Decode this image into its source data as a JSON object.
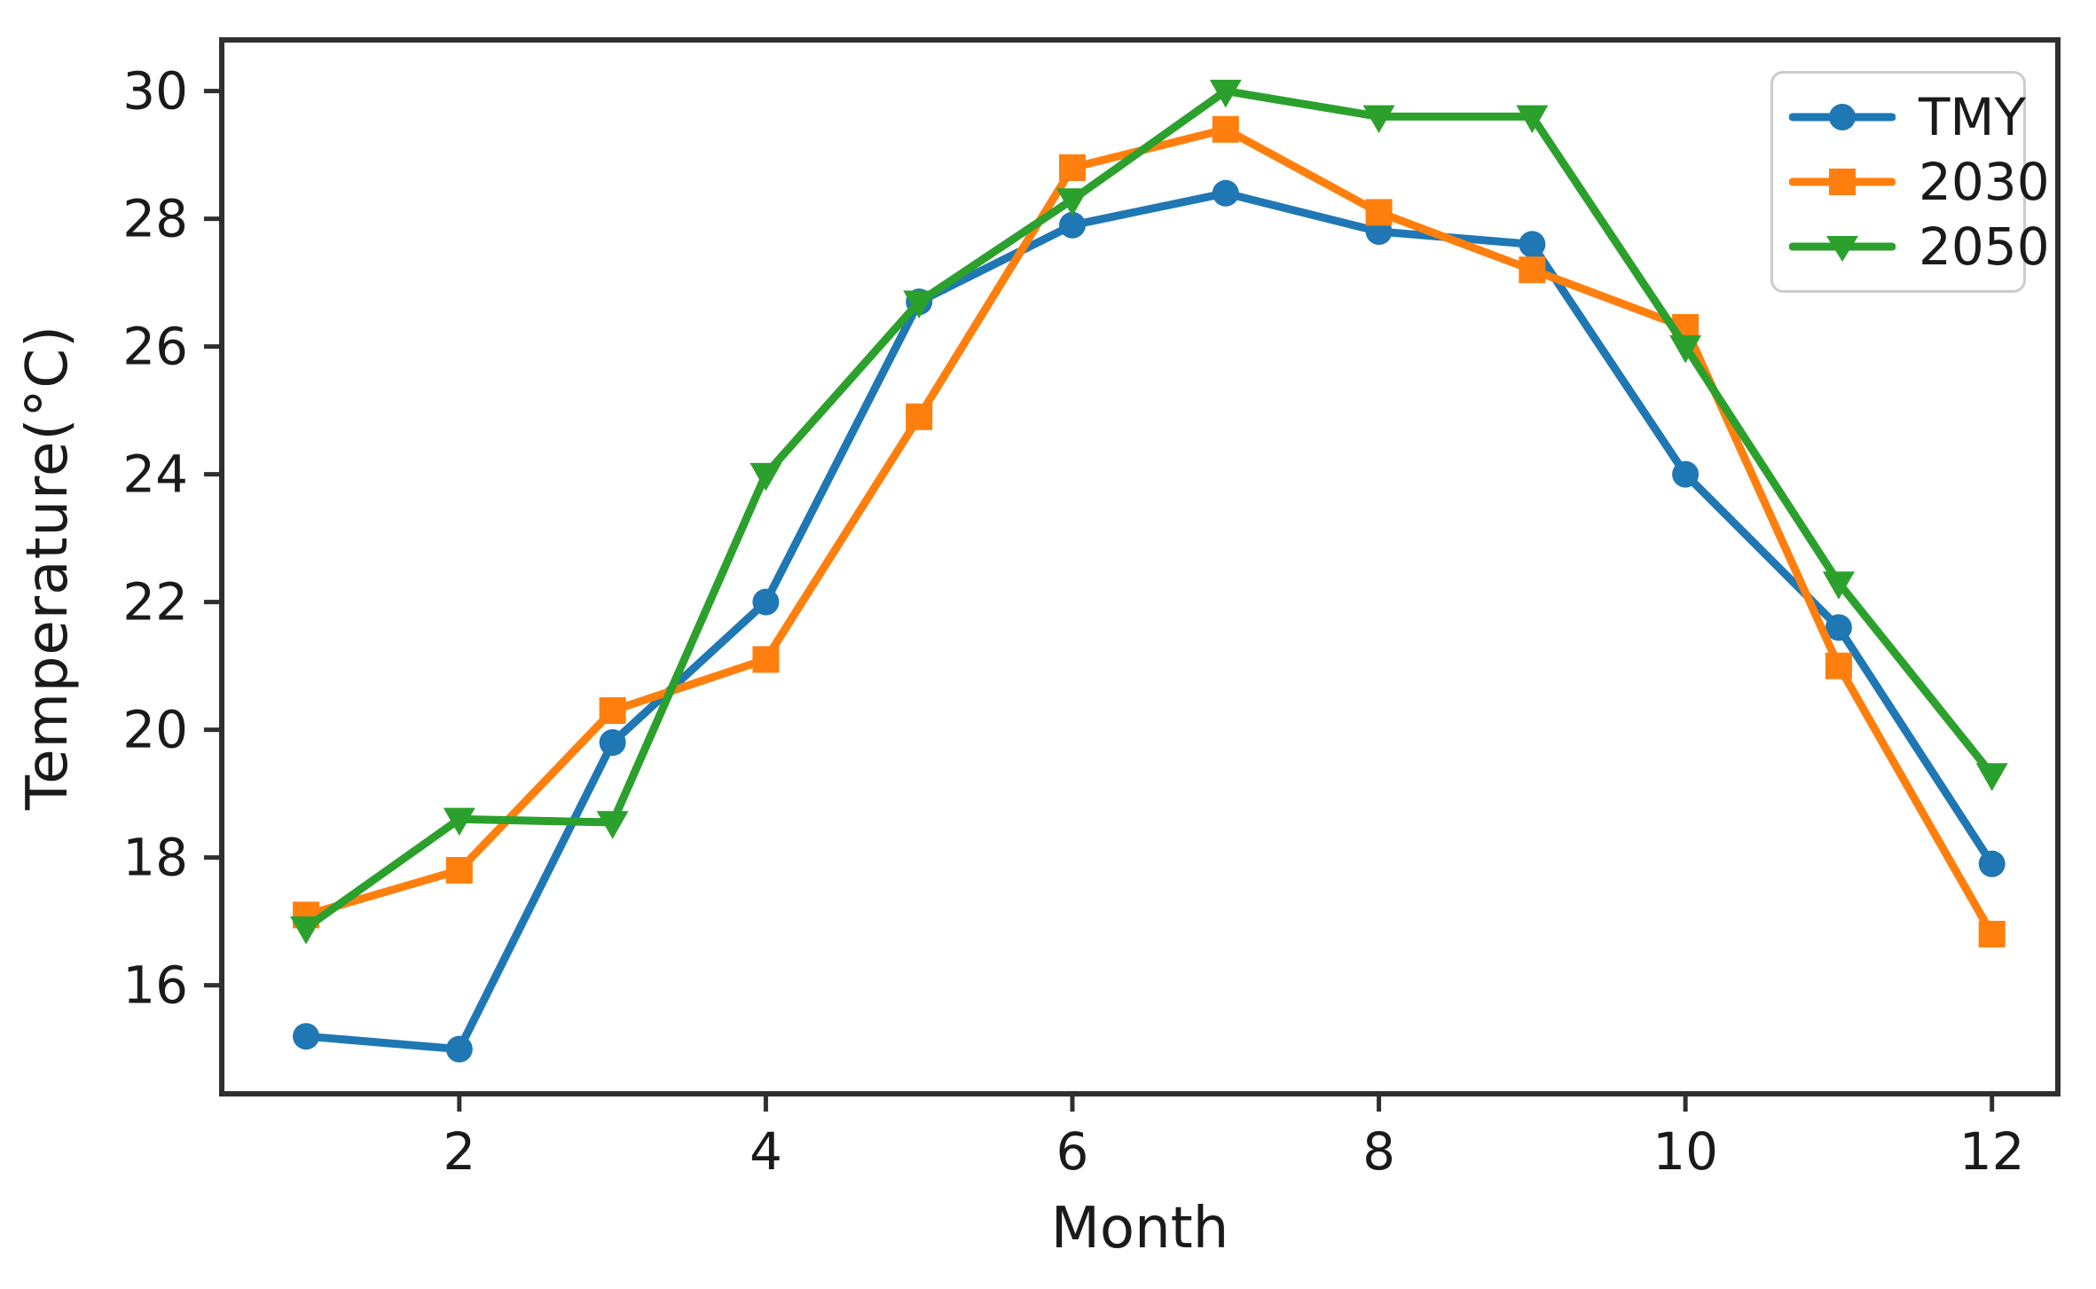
{
  "figure": {
    "background_color": "#ffffff",
    "axis_color": "#2f2f2f",
    "text_color": "#1a1a1a",
    "legend_border_color": "#cccccc"
  },
  "chart_data": {
    "type": "line",
    "title": "",
    "xlabel": "Month",
    "ylabel": "Temperature(°C)",
    "x": [
      1,
      2,
      3,
      4,
      5,
      6,
      7,
      8,
      9,
      10,
      11,
      12
    ],
    "xticks": [
      2,
      4,
      6,
      8,
      10,
      12
    ],
    "yticks": [
      16,
      18,
      20,
      22,
      24,
      26,
      28,
      30
    ],
    "xlim": [
      0.45,
      12.43
    ],
    "ylim": [
      14.3,
      30.8
    ],
    "grid": false,
    "legend_position": "upper right",
    "series": [
      {
        "name": "TMY",
        "color": "#1f77b4",
        "marker": "circle",
        "values": [
          15.2,
          15.0,
          19.8,
          22.0,
          26.7,
          27.9,
          28.4,
          27.8,
          27.6,
          24.0,
          21.6,
          17.9
        ]
      },
      {
        "name": "2030",
        "color": "#ff7f0e",
        "marker": "square",
        "values": [
          17.1,
          17.8,
          20.3,
          21.1,
          24.9,
          28.8,
          29.4,
          28.1,
          27.2,
          26.3,
          21.0,
          16.8
        ]
      },
      {
        "name": "2050",
        "color": "#2ca02c",
        "marker": "triangle-down",
        "values": [
          16.9,
          18.6,
          18.55,
          24.0,
          26.7,
          28.3,
          30.0,
          29.6,
          29.6,
          26.0,
          22.3,
          19.3
        ]
      }
    ]
  }
}
